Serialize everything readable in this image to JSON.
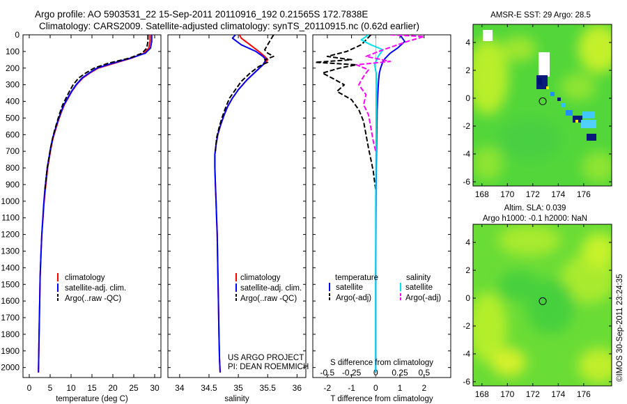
{
  "figure": {
    "title_line1": "Argo profile: AO 5903531_22 15-Sep-2011 20110916_192 0.21565S 172.7838E",
    "title_line2": "Climatology: CARS2009. Satellite-adjusted climatology: synTS_20110915.nc (0.62d earlier)",
    "credit": "©IMOS 30-Sep-2011 23:24:35",
    "project_line1": "US ARGO PROJECT",
    "project_line2": "PI: DEAN ROEMMICH"
  },
  "colors": {
    "climatology": "#ff0000",
    "satellite": "#0000ff",
    "argo": "#000000",
    "salinity_satellite": "#00e5ee",
    "salinity_argo": "#ff00ff"
  },
  "chart_data": [
    {
      "type": "line",
      "id": "temperature",
      "xlabel": "temperature (deg C)",
      "ylabel": "",
      "xlim": [
        -1.5,
        31.5
      ],
      "ylim": [
        2060,
        0
      ],
      "xticks": [
        0,
        5,
        10,
        15,
        20,
        25,
        30
      ],
      "yticks": [
        0,
        100,
        200,
        300,
        400,
        500,
        600,
        700,
        800,
        900,
        1000,
        1100,
        1200,
        1300,
        1400,
        1500,
        1600,
        1700,
        1800,
        1900,
        2000
      ],
      "legend": [
        "climatology",
        "satellite-adj. clim.",
        "Argo(..raw -QC)"
      ],
      "series": [
        {
          "name": "climatology",
          "style": "solid",
          "color": "#ff0000",
          "x": [
            28.9,
            28.9,
            28.6,
            27.5,
            24.5,
            20.5,
            16.5,
            14.5,
            12.8,
            11.3,
            10.2,
            9.3,
            8.4,
            7.6,
            6.9,
            6.3,
            5.7,
            5.2,
            4.8,
            4.4,
            4.1,
            3.8,
            3.5,
            3.3,
            3.0,
            2.8,
            2.6,
            2.5,
            2.35,
            2.2
          ],
          "y": [
            0,
            40,
            80,
            110,
            140,
            170,
            200,
            230,
            260,
            300,
            340,
            380,
            420,
            470,
            520,
            570,
            620,
            680,
            740,
            800,
            870,
            940,
            1020,
            1100,
            1200,
            1320,
            1450,
            1600,
            1800,
            2030
          ]
        },
        {
          "name": "satellite-adj. clim.",
          "style": "solid",
          "color": "#0000ff",
          "x": [
            29.3,
            29.3,
            29.0,
            27.8,
            24.3,
            20.0,
            16.2,
            14.3,
            12.6,
            11.2,
            10.1,
            9.2,
            8.3,
            7.5,
            6.8,
            6.2,
            5.6,
            5.1,
            4.7,
            4.3,
            4.0,
            3.7,
            3.45,
            3.25,
            3.0,
            2.8,
            2.6,
            2.5,
            2.35,
            2.2
          ],
          "y": [
            0,
            40,
            80,
            110,
            140,
            170,
            200,
            230,
            260,
            300,
            340,
            380,
            420,
            470,
            520,
            570,
            620,
            680,
            740,
            800,
            870,
            940,
            1020,
            1100,
            1200,
            1320,
            1450,
            1600,
            1800,
            2030
          ]
        },
        {
          "name": "Argo(..raw -QC)",
          "style": "dashed",
          "color": "#000000",
          "x": [
            28.4,
            28.4,
            28.1,
            27.0,
            24.0,
            19.0,
            15.5,
            13.5,
            11.8,
            10.5,
            9.6,
            8.8,
            8.0,
            7.3,
            6.7,
            6.1,
            5.6,
            5.1,
            4.7,
            4.3,
            4.0,
            3.7
          ],
          "y": [
            0,
            40,
            80,
            110,
            140,
            170,
            200,
            230,
            260,
            300,
            340,
            380,
            420,
            470,
            520,
            570,
            620,
            680,
            740,
            800,
            870,
            940
          ]
        }
      ]
    },
    {
      "type": "line",
      "id": "salinity",
      "xlabel": "salinity",
      "xlim": [
        33.8,
        36.15
      ],
      "ylim": [
        2060,
        0
      ],
      "xticks": [
        34,
        34.5,
        35,
        35.5,
        36
      ],
      "legend": [
        "climatology",
        "satellite-adj. clim.",
        "Argo(..raw -QC)"
      ],
      "series": [
        {
          "name": "climatology",
          "style": "solid",
          "color": "#ff0000",
          "x": [
            35.02,
            35.05,
            35.2,
            35.35,
            35.45,
            35.5,
            35.42,
            35.3,
            35.15,
            35.0,
            34.9,
            34.82,
            34.76,
            34.7,
            34.65,
            34.62,
            34.6,
            34.6,
            34.61,
            34.62,
            34.63,
            34.64,
            34.65,
            34.66,
            34.67,
            34.68,
            34.69
          ],
          "y": [
            0,
            20,
            60,
            100,
            130,
            150,
            180,
            220,
            270,
            330,
            380,
            430,
            480,
            540,
            600,
            660,
            720,
            800,
            900,
            1000,
            1100,
            1200,
            1400,
            1600,
            1800,
            1950,
            2030
          ]
        },
        {
          "name": "satellite-adj. clim.",
          "style": "solid",
          "color": "#0000ff",
          "x": [
            34.95,
            34.9,
            35.05,
            35.3,
            35.42,
            35.47,
            35.42,
            35.3,
            35.15,
            35.0,
            34.9,
            34.82,
            34.76,
            34.7,
            34.65,
            34.62,
            34.6,
            34.6,
            34.61,
            34.62,
            34.63,
            34.64,
            34.65,
            34.66,
            34.67,
            34.68,
            34.69
          ],
          "y": [
            0,
            20,
            60,
            100,
            130,
            150,
            180,
            220,
            270,
            330,
            380,
            430,
            480,
            540,
            600,
            660,
            720,
            800,
            900,
            1000,
            1100,
            1200,
            1400,
            1600,
            1800,
            1950,
            2030
          ]
        },
        {
          "name": "Argo(..raw -QC)",
          "style": "dashed",
          "color": "#000000",
          "x": [
            35.6,
            35.55,
            35.5,
            35.45,
            35.5,
            35.6,
            35.45,
            35.5,
            35.35,
            35.2,
            35.05,
            34.95,
            34.85,
            34.78,
            34.72,
            34.67,
            34.63,
            34.61
          ],
          "y": [
            0,
            30,
            60,
            90,
            110,
            130,
            150,
            165,
            190,
            230,
            280,
            330,
            380,
            440,
            500,
            560,
            620,
            700
          ]
        }
      ]
    },
    {
      "type": "line",
      "id": "differences",
      "xlabel_top": "S difference from climatology",
      "xlabel": "T difference from climatology",
      "xlim": [
        -2.6,
        3.1
      ],
      "ylim": [
        2060,
        0
      ],
      "xticks": [
        -2,
        -1,
        0,
        1,
        2
      ],
      "xticks_salinity": [
        -0.5,
        -0.25,
        0,
        0.25,
        0.5
      ],
      "legend_titles": [
        "temperature",
        "salinity"
      ],
      "legend": [
        "satellite",
        "Argo(-adj)",
        "satellite",
        "Argo(-adj)"
      ],
      "series": [
        {
          "name": "temperature satellite",
          "style": "solid",
          "color": "#0000ff",
          "x": [
            1.0,
            1.2,
            0.9,
            0.6,
            0.4,
            0.3,
            0.25,
            0.2,
            0.15,
            0.12,
            0.1,
            0.08,
            0.06,
            0.05,
            0.04,
            0.03,
            0.02,
            0.01,
            0.0,
            0.0
          ],
          "y": [
            0,
            40,
            80,
            110,
            140,
            160,
            180,
            200,
            230,
            270,
            320,
            380,
            450,
            530,
            620,
            720,
            850,
            1000,
            1400,
            2030
          ]
        },
        {
          "name": "temperature Argo(-adj)",
          "style": "dashed",
          "color": "#000000",
          "x": [
            -0.2,
            -0.6,
            -1.2,
            -2.0,
            -1.0,
            -2.5,
            -0.8,
            -1.5,
            -2.2,
            -1.8,
            -1.3,
            -1.6,
            -1.0,
            -0.7,
            -0.5,
            -0.4,
            -0.3,
            -0.2,
            -0.1,
            -0.05,
            0.0
          ],
          "y": [
            0,
            60,
            100,
            130,
            150,
            165,
            180,
            200,
            230,
            260,
            300,
            340,
            390,
            450,
            520,
            600,
            680,
            750,
            820,
            880,
            930
          ]
        },
        {
          "name": "salinity satellite",
          "style": "solid",
          "color": "#00e5ee",
          "x": [
            -0.3,
            -0.6,
            -0.2,
            0.3,
            0.1,
            -0.05,
            0.02,
            0.04,
            0.03,
            0.02,
            0.01,
            0.0,
            0.0,
            0.0,
            0.0,
            0.0
          ],
          "y": [
            0,
            30,
            60,
            90,
            130,
            180,
            230,
            300,
            400,
            600,
            800,
            1000,
            1300,
            1600,
            1900,
            2030
          ]
        },
        {
          "name": "salinity Argo(-adj)",
          "style": "dashed",
          "color": "#ff00ff",
          "x": [
            0.6,
            2.0,
            1.3,
            0.3,
            -0.4,
            0.6,
            -0.8,
            -0.3,
            -0.5,
            -0.7,
            -0.4,
            -0.5,
            -0.3,
            -0.2,
            -0.1,
            0.0
          ],
          "y": [
            0,
            10,
            40,
            90,
            130,
            160,
            180,
            210,
            250,
            300,
            360,
            420,
            480,
            560,
            640,
            700
          ]
        }
      ]
    },
    {
      "type": "heatmap",
      "id": "sst_map",
      "title": "AMSR-E SST: 29  Argo: 28.5",
      "xlim": [
        167.3,
        178.2
      ],
      "ylim": [
        -6.3,
        5.3
      ],
      "xticks": [
        168,
        170,
        172,
        174,
        176
      ],
      "yticks": [
        -6,
        -4,
        -2,
        0,
        2,
        4
      ],
      "argo_position": [
        172.78,
        -0.22
      ]
    },
    {
      "type": "heatmap",
      "id": "sla_map",
      "title_line1": "Altim. SLA: 0.039",
      "title_line2": "Argo h1000: -0.1 h2000: NaN",
      "xlim": [
        167.3,
        178.2
      ],
      "ylim": [
        -6.3,
        5.3
      ],
      "xticks": [
        168,
        170,
        172,
        174,
        176
      ],
      "yticks": [
        -6,
        -4,
        -2,
        0,
        2,
        4
      ],
      "argo_position": [
        172.78,
        -0.22
      ]
    }
  ]
}
